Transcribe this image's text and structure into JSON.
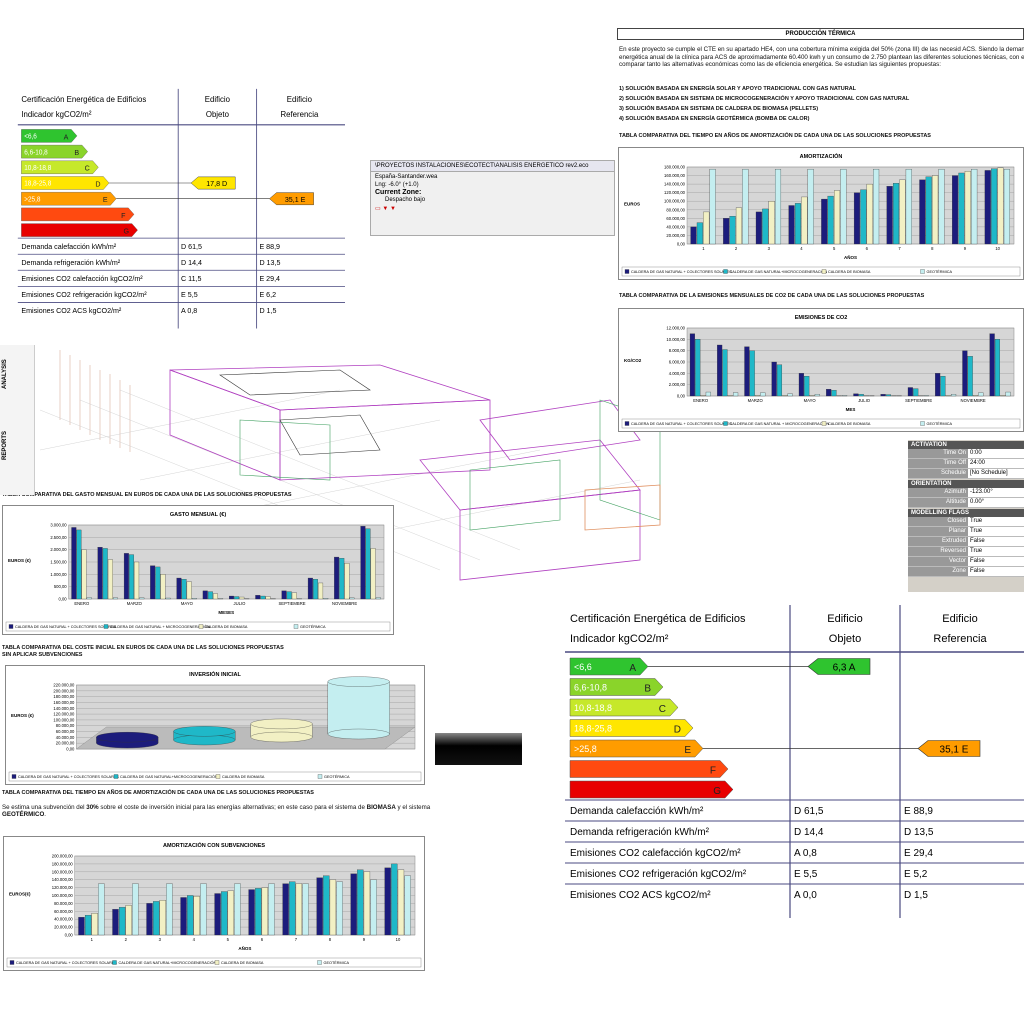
{
  "chart_data": [
    {
      "type": "bar",
      "title": "AMORTIZACIÓN",
      "x_label": "AÑOS",
      "y_label": "EUROS",
      "categories": [
        "1",
        "2",
        "3",
        "4",
        "5",
        "6",
        "7",
        "8",
        "9",
        "10"
      ],
      "series": [
        {
          "name": "CALDERA DE GAS NATURAL + COLECTORES SOLARES",
          "color": "#1c1c7c",
          "values": [
            40000,
            60000,
            75000,
            90000,
            105000,
            120000,
            135000,
            150000,
            160000,
            172000
          ]
        },
        {
          "name": "CALDERA DE GAS NATURAL+MICROCOGENERACIÓN",
          "color": "#1fb8c8",
          "values": [
            50000,
            65000,
            82000,
            95000,
            112000,
            127000,
            142000,
            157000,
            166000,
            176000
          ]
        },
        {
          "name": "CALDERA DE BIOMASA",
          "color": "#f2f0c4",
          "values": [
            75000,
            85000,
            100000,
            110000,
            125000,
            140000,
            150000,
            160000,
            170000,
            178000
          ]
        },
        {
          "name": "GEOTÉRMICA",
          "color": "#c4eef0",
          "values": [
            175000,
            175000,
            175000,
            175000,
            175000,
            175000,
            175000,
            175000,
            175000,
            175000
          ]
        }
      ],
      "ylim": [
        0,
        180000
      ],
      "yticks": [
        {
          "value": 0,
          "label": "0,00"
        },
        {
          "value": 20000,
          "label": "20.000,00"
        },
        {
          "value": 40000,
          "label": "40.000,00"
        },
        {
          "value": 60000,
          "label": "60.000,00"
        },
        {
          "value": 80000,
          "label": "80.000,00"
        },
        {
          "value": 100000,
          "label": "100.000,00"
        },
        {
          "value": 120000,
          "label": "120.000,00"
        },
        {
          "value": 140000,
          "label": "140.000,00"
        },
        {
          "value": 160000,
          "label": "160.000,00"
        },
        {
          "value": 180000,
          "label": "180.000,00"
        }
      ],
      "grid": true
    },
    {
      "type": "bar",
      "title": "EMISIONES DE CO2",
      "x_label": "MES",
      "y_label": "KG/CO2",
      "categories": [
        "ENERO",
        null,
        "MARZO",
        null,
        "MAYO",
        null,
        "JULIO",
        null,
        "SEPTIEMBRE",
        null,
        "NOVIEMBRE",
        null
      ],
      "series": [
        {
          "name": "CALDERA DE GAS NATURAL + COLECTORES SOLARES",
          "color": "#1c1c7c",
          "values": [
            11000,
            9000,
            8700,
            6000,
            4000,
            1200,
            400,
            300,
            1500,
            4000,
            8000,
            11000
          ]
        },
        {
          "name": "CALDERA DE GAS NATURAL + MICROCOGENERACIÓN",
          "color": "#1fb8c8",
          "values": [
            10000,
            8200,
            8000,
            5500,
            3500,
            1000,
            300,
            250,
            1300,
            3500,
            7000,
            10000
          ]
        },
        {
          "name": "CALDERA DE BIOMASA",
          "color": "#f2f0c4",
          "values": [
            100,
            100,
            100,
            100,
            100,
            50,
            50,
            50,
            50,
            100,
            100,
            100
          ]
        },
        {
          "name": "GEOTÉRMICA",
          "color": "#c4eef0",
          "values": [
            700,
            600,
            600,
            400,
            300,
            100,
            50,
            50,
            100,
            300,
            600,
            700
          ]
        }
      ],
      "ylim": [
        0,
        12000
      ],
      "yticks": [
        {
          "value": 0,
          "label": "0,00"
        },
        {
          "value": 2000,
          "label": "2.000,00"
        },
        {
          "value": 4000,
          "label": "4.000,00"
        },
        {
          "value": 6000,
          "label": "6.000,00"
        },
        {
          "value": 8000,
          "label": "8.000,00"
        },
        {
          "value": 10000,
          "label": "10.000,00"
        },
        {
          "value": 12000,
          "label": "12.000,00"
        }
      ],
      "grid": true
    },
    {
      "type": "bar",
      "title": "GASTO MENSUAL (€)",
      "x_label": "MESES",
      "y_label": "EUROS (€)",
      "categories": [
        "ENERO",
        null,
        "MARZO",
        null,
        "MAYO",
        null,
        "JULIO",
        null,
        "SEPTIEMBRE",
        null,
        "NOVIEMBRE",
        null
      ],
      "series": [
        {
          "name": "CALDERA DE GAS NATURAL + COLECTORES SOLARES",
          "color": "#1c1c7c",
          "values": [
            2900,
            2100,
            1850,
            1350,
            850,
            330,
            120,
            150,
            330,
            850,
            1700,
            2950
          ]
        },
        {
          "name": "CALDERA DE GAS NATURAL + MICROCOGENERACIÓN",
          "color": "#1fb8c8",
          "values": [
            2800,
            2050,
            1800,
            1300,
            800,
            300,
            100,
            120,
            300,
            800,
            1650,
            2850
          ]
        },
        {
          "name": "CALDERA DE BIOMASA",
          "color": "#f2f0c4",
          "values": [
            2000,
            1600,
            1500,
            1000,
            700,
            220,
            80,
            100,
            250,
            650,
            1450,
            2050
          ]
        },
        {
          "name": "GEOTÉRMICA",
          "color": "#c4eef0",
          "values": [
            60,
            50,
            50,
            40,
            30,
            20,
            10,
            10,
            20,
            30,
            50,
            60
          ]
        }
      ],
      "ylim": [
        0,
        3000
      ],
      "yticks": [
        {
          "value": 0,
          "label": "0,00"
        },
        {
          "value": 500,
          "label": "500,00"
        },
        {
          "value": 1000,
          "label": "1.000,00"
        },
        {
          "value": 1500,
          "label": "1.500,00"
        },
        {
          "value": 2000,
          "label": "2.000,00"
        },
        {
          "value": 2500,
          "label": "2.500,00"
        },
        {
          "value": 3000,
          "label": "3.000,00"
        }
      ],
      "grid": true
    },
    {
      "type": "cylinder",
      "title": "INVERSIÓN INICIAL",
      "y_label": "EUROS (€)",
      "series": [
        {
          "name": "CALDERA DE GAS NATURAL + COLECTORES SOLARES",
          "color": "#1c1c7c",
          "values": [
            20000
          ]
        },
        {
          "name": "CALDERA DE GAS NATURAL+MICROCOGENERACIÓN",
          "color": "#1fb8c8",
          "values": [
            30000
          ]
        },
        {
          "name": "CALDERA DE BIOMASA",
          "color": "#f2f0c4",
          "values": [
            45000
          ]
        },
        {
          "name": "GEOTÉRMICA",
          "color": "#c4eef0",
          "values": [
            180000
          ]
        }
      ],
      "ylim": [
        0,
        220000
      ],
      "yticks": [
        {
          "value": 0,
          "label": "0,00"
        },
        {
          "value": 20000,
          "label": "20.000,00"
        },
        {
          "value": 40000,
          "label": "40.000,00"
        },
        {
          "value": 60000,
          "label": "60.000,00"
        },
        {
          "value": 80000,
          "label": "80.000,00"
        },
        {
          "value": 100000,
          "label": "100.000,00"
        },
        {
          "value": 120000,
          "label": "120.000,00"
        },
        {
          "value": 140000,
          "label": "140.000,00"
        },
        {
          "value": 160000,
          "label": "160.000,00"
        },
        {
          "value": 180000,
          "label": "180.000,00"
        },
        {
          "value": 200000,
          "label": "200.000,00"
        },
        {
          "value": 220000,
          "label": "220.000,00"
        }
      ],
      "grid": true
    },
    {
      "type": "bar",
      "title": "AMORTIZACIÓN CON SUBVENCIONES",
      "x_label": "AÑOS",
      "y_label": "EUROS(€)",
      "categories": [
        "1",
        "2",
        "3",
        "4",
        "5",
        "6",
        "7",
        "8",
        "9",
        "10"
      ],
      "series": [
        {
          "name": "CALDERA DE GAS NATURAL + COLECTORES SOLARES",
          "color": "#1c1c7c",
          "values": [
            45000,
            65000,
            80000,
            95000,
            105000,
            115000,
            130000,
            145000,
            155000,
            170000
          ]
        },
        {
          "name": "CALDERA DE GAS NATURAL+MICROCOGENERACIÓN",
          "color": "#1fb8c8",
          "values": [
            50000,
            70000,
            85000,
            100000,
            110000,
            118000,
            135000,
            150000,
            165000,
            180000
          ]
        },
        {
          "name": "CALDERA DE BIOMASA",
          "color": "#f2f0c4",
          "values": [
            55000,
            75000,
            88000,
            98000,
            112000,
            120000,
            130000,
            140000,
            160000,
            165000
          ]
        },
        {
          "name": "GEOTÉRMICA",
          "color": "#c4eef0",
          "values": [
            130000,
            130000,
            130000,
            130000,
            130000,
            130000,
            130000,
            135000,
            140000,
            150000
          ]
        }
      ],
      "ylim": [
        0,
        200000
      ],
      "yticks": [
        {
          "value": 0,
          "label": "0,00"
        },
        {
          "value": 20000,
          "label": "20.000,00"
        },
        {
          "value": 40000,
          "label": "40.000,00"
        },
        {
          "value": 60000,
          "label": "60.000,00"
        },
        {
          "value": 80000,
          "label": "80.000,00"
        },
        {
          "value": 100000,
          "label": "100.000,00"
        },
        {
          "value": 120000,
          "label": "120.000,00"
        },
        {
          "value": 140000,
          "label": "140.000,00"
        },
        {
          "value": 160000,
          "label": "160.000,00"
        },
        {
          "value": 180000,
          "label": "180.000,00"
        },
        {
          "value": 200000,
          "label": "200.000,00"
        }
      ],
      "grid": true
    }
  ],
  "cert_tables": [
    {
      "title": "Certificación Energética de Edificios",
      "subtitle": "Indicador kgCO2/m²",
      "col_objeto": [
        "Edificio",
        "Objeto"
      ],
      "col_referencia": [
        "Edificio",
        "Referencia"
      ],
      "scale_labels": [
        "<6,6",
        "6,6-10,8",
        "10,8-18,8",
        "18,8-25,8",
        ">25,8"
      ],
      "letters": [
        "A",
        "B",
        "C",
        "D",
        "E",
        "F",
        "G"
      ],
      "objeto": "17,8 D",
      "referencia": "35,1 E",
      "rows": [
        [
          "Demanda calefacción kWh/m²",
          "D 61,5",
          "E 88,9"
        ],
        [
          "Demanda refrigeración kWh/m²",
          "D 14,4",
          "D 13,5"
        ],
        [
          "Emisiones CO2 calefacción kgCO2/m²",
          "C 11,5",
          "E 29,4"
        ],
        [
          "Emisiones CO2 refrigeración kgCO2/m²",
          "E 5,5",
          "E 6,2"
        ],
        [
          "Emisiones CO2 ACS kgCO2/m²",
          "A 0,8",
          "D 1,5"
        ]
      ]
    },
    {
      "title": "Certificación Energética de Edificios",
      "subtitle": "Indicador kgCO2/m²",
      "col_objeto": [
        "Edificio",
        "Objeto"
      ],
      "col_referencia": [
        "Edificio",
        "Referencia"
      ],
      "scale_labels": [
        "<6,6",
        "6,6-10,8",
        "10,8-18,8",
        "18,8-25,8",
        ">25,8"
      ],
      "letters": [
        "A",
        "B",
        "C",
        "D",
        "E",
        "F",
        "G"
      ],
      "objeto": "6,3 A",
      "referencia": "35,1 E",
      "rows": [
        [
          "Demanda calefacción kWh/m²",
          "D 61,5",
          "E 88,9"
        ],
        [
          "Demanda refrigeración kWh/m²",
          "D 14,4",
          "D 13,5"
        ],
        [
          "Emisiones CO2 calefacción kgCO2/m²",
          "A 0,8",
          "E 29,4"
        ],
        [
          "Emisiones CO2 refrigeración kgCO2/m²",
          "E 5,5",
          "E 5,2"
        ],
        [
          "Emisiones CO2 ACS kgCO2/m²",
          "A 0,0",
          "D 1,5"
        ]
      ]
    }
  ],
  "thermal": {
    "title": "PRODUCCIÓN TÉRMICA",
    "paragraph": "En este proyecto se cumple el CTE en su apartado HE4, con una cobertura mínima exigida del 50% (zona III) de las necesid ACS. Siendo la demanda energética anual de la clínica para ACS de aproximadamente 60.400 kwh y un consumo de 2.750 plantean las diferentes soluciones técnicas, con el fin de comparar tanto las alternativas económicas como las de eficiencia energética. Se estudian las siguientes propuestas:",
    "items": [
      "1) SOLUCIÓN BASADA EN ENERGÍA SOLAR Y APOYO TRADICIONAL CON GAS NATURAL",
      "2) SOLUCIÓN BASADA EN SISTEMA DE MICROCOGENERACIÓN Y APOYO TRADICIONAL CON GAS NATURAL",
      "3) SOLUCIÓN BASADA EN SISTEMA DE CALDERA DE BIOMASA (PELLETS)",
      "4) SOLUCIÓN BASADA EN ENERGÍA GEOTÉRMICA (BOMBA DE CALOR)"
    ],
    "heading_amortizacion": "TABLA COMPARATIVA DEL TIEMPO EN AÑOS DE AMORTIZACIÓN DE CADA UNA DE LAS SOLUCIONES PROPUESTAS",
    "heading_emisiones": "TABLA COMPARATIVA DE LA EMISIONES MENSUALES DE CO2 DE CADA UNA DE LAS SOLUCIONES PROPUESTAS"
  },
  "left_doc": {
    "heading_gasto": "TABLA COMPARATIVA DEL GASTO MENSUAL EN EUROS DE CADA UNA DE LAS SOLUCIONES PROPUESTAS",
    "heading_coste": "TABLA COMPARATIVA DEL COSTE INICIAL EN EUROS DE CADA UNA DE LAS SOLUCIONES PROPUESTAS",
    "heading_coste_sub": "SIN APLICAR SUBVENCIONES",
    "heading_amortizacion": "TABLA COMPARATIVA DEL TIEMPO EN AÑOS DE AMORTIZACIÓN DE CADA UNA DE LAS SOLUCIONES PROPUESTAS",
    "paragraph": [
      "Se estima una subvención del ",
      "30%",
      " sobre el coste de inversión inicial para las energías alternativas; en este caso para el sistema de ",
      "BIOMASA",
      " y el sistema ",
      "GEOTÉRMICO",
      "."
    ]
  },
  "screenshot": {
    "path": "\\PROYECTOS INSTALACIONES\\ECOTECT\\ANALISIS ENERGETICO rev2.eco",
    "weather": "España-Santander.wea",
    "longitude": "Lng: -6.0° (+1.0)",
    "zone_label": "Current Zone:",
    "zone": "Despacho bajo"
  },
  "toolbar": {
    "analysis": "ANALYSIS",
    "reports": "REPORTS"
  },
  "properties": {
    "sections": [
      {
        "title": "ACTIVATION",
        "rows": [
          [
            "Time On",
            "0:00"
          ],
          [
            "Time Off",
            "24:00"
          ],
          [
            "Schedule",
            "[No Schedule]"
          ]
        ]
      },
      {
        "title": "ORIENTATION",
        "rows": [
          [
            "Azimuth",
            "-123.00°"
          ],
          [
            "Altitude",
            "0.00°"
          ]
        ]
      },
      {
        "title": "MODELLING FLAGS",
        "rows": [
          [
            "Closed",
            "True"
          ],
          [
            "Planar",
            "True"
          ],
          [
            "Extruded",
            "False"
          ],
          [
            "Reversed",
            "True"
          ],
          [
            "Vector",
            "False"
          ],
          [
            "Zone",
            "False"
          ]
        ]
      }
    ]
  }
}
